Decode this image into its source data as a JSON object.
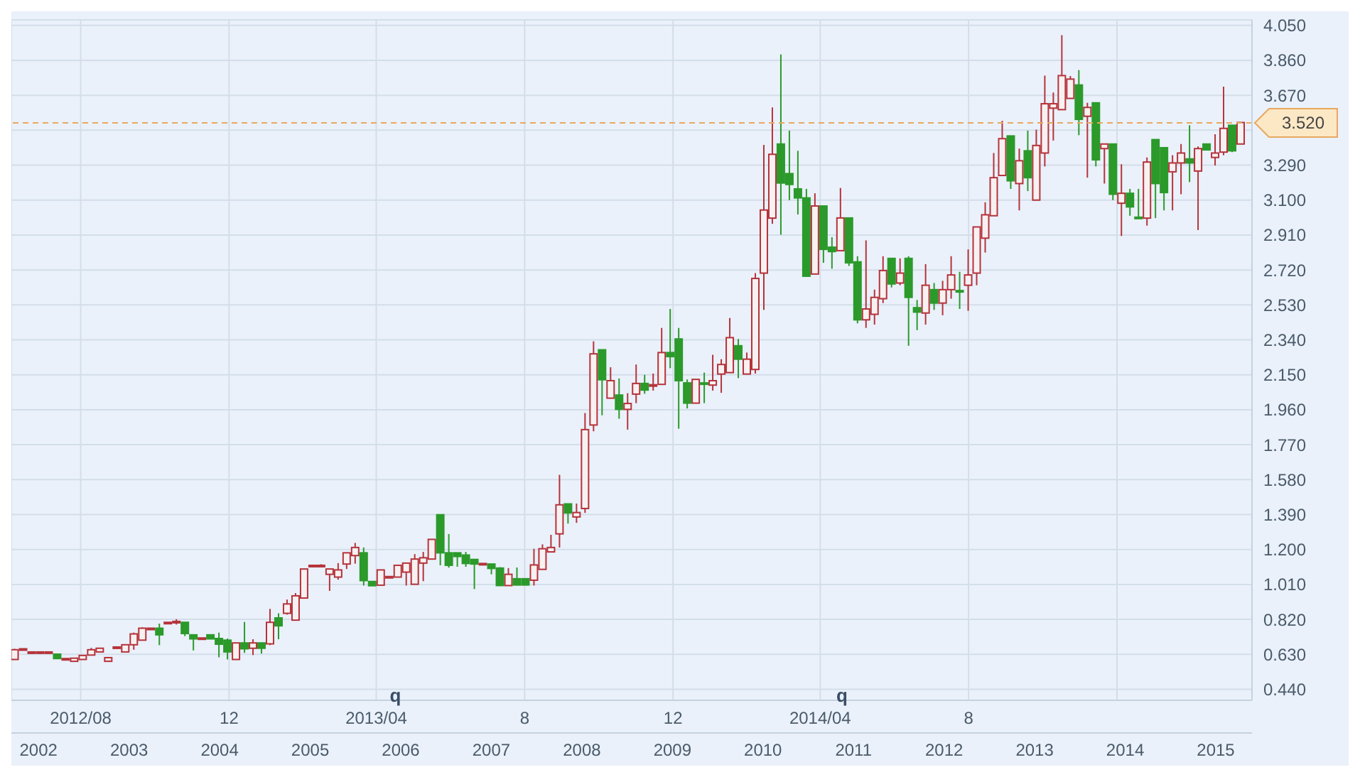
{
  "chart_data": {
    "type": "candlestick",
    "x": [
      "2012-06-08",
      "2012-06-15",
      "2012-06-22",
      "2012-06-29",
      "2012-07-06",
      "2012-07-13",
      "2012-07-20",
      "2012-07-27",
      "2012-08-03",
      "2012-08-10",
      "2012-08-17",
      "2012-08-24",
      "2012-08-31",
      "2012-09-07",
      "2012-09-14",
      "2012-09-21",
      "2012-09-28",
      "2012-10-05",
      "2012-10-12",
      "2012-10-19",
      "2012-10-26",
      "2012-11-02",
      "2012-11-09",
      "2012-11-16",
      "2012-11-23",
      "2012-11-30",
      "2012-12-07",
      "2012-12-14",
      "2012-12-21",
      "2012-12-28",
      "2013-01-04",
      "2013-01-11",
      "2013-01-18",
      "2013-01-25",
      "2013-02-01",
      "2013-02-08",
      "2013-02-15",
      "2013-02-22",
      "2013-03-01",
      "2013-03-08",
      "2013-03-15",
      "2013-03-22",
      "2013-03-29",
      "2013-04-05",
      "2013-04-12",
      "2013-04-19",
      "2013-04-26",
      "2013-05-03",
      "2013-05-10",
      "2013-05-17",
      "2013-05-24",
      "2013-05-31",
      "2013-06-07",
      "2013-06-14",
      "2013-06-21",
      "2013-06-28",
      "2013-07-05",
      "2013-07-12",
      "2013-07-19",
      "2013-07-26",
      "2013-08-02",
      "2013-08-09",
      "2013-08-16",
      "2013-08-23",
      "2013-08-30",
      "2013-09-06",
      "2013-09-13",
      "2013-09-20",
      "2013-09-27",
      "2013-10-04",
      "2013-10-11",
      "2013-10-18",
      "2013-10-25",
      "2013-11-01",
      "2013-11-08",
      "2013-11-15",
      "2013-11-22",
      "2013-11-29",
      "2013-12-06",
      "2013-12-13",
      "2013-12-20",
      "2013-12-27",
      "2014-01-03",
      "2014-01-10",
      "2014-01-17",
      "2014-01-24",
      "2014-01-31",
      "2014-02-07",
      "2014-02-14",
      "2014-02-21",
      "2014-02-28",
      "2014-03-07",
      "2014-03-14",
      "2014-03-21",
      "2014-03-28",
      "2014-04-04",
      "2014-04-11",
      "2014-04-18",
      "2014-04-25",
      "2014-05-02",
      "2014-05-09",
      "2014-05-16",
      "2014-05-23",
      "2014-05-30",
      "2014-06-06",
      "2014-06-13",
      "2014-06-20",
      "2014-06-27",
      "2014-07-04",
      "2014-07-11",
      "2014-07-18",
      "2014-07-25",
      "2014-08-01",
      "2014-08-08",
      "2014-08-15",
      "2014-08-22",
      "2014-08-29",
      "2014-09-05",
      "2014-09-12",
      "2014-09-19",
      "2014-09-26",
      "2014-10-03",
      "2014-10-10",
      "2014-10-17",
      "2014-10-24",
      "2014-10-31",
      "2014-11-07",
      "2014-11-14",
      "2014-11-21",
      "2014-11-28",
      "2014-12-05",
      "2014-12-12",
      "2014-12-19",
      "2014-12-26",
      "2015-01-02",
      "2015-01-09",
      "2015-01-16",
      "2015-01-23",
      "2015-01-30",
      "2015-02-06",
      "2015-02-13",
      "2015-02-20",
      "2015-02-27",
      "2015-03-06",
      "2015-03-13"
    ],
    "ohlc": [
      [
        0.602,
        0.66,
        0.6,
        0.655
      ],
      [
        0.66,
        0.66,
        0.66,
        0.66
      ],
      [
        0.643,
        0.643,
        0.643,
        0.643
      ],
      [
        0.643,
        0.643,
        0.643,
        0.643
      ],
      [
        0.643,
        0.643,
        0.643,
        0.643
      ],
      [
        0.631,
        0.631,
        0.607,
        0.607
      ],
      [
        0.607,
        0.607,
        0.607,
        0.607
      ],
      [
        0.592,
        0.609,
        0.592,
        0.609
      ],
      [
        0.602,
        0.624,
        0.602,
        0.624
      ],
      [
        0.626,
        0.665,
        0.626,
        0.655
      ],
      [
        0.643,
        0.663,
        0.643,
        0.663
      ],
      [
        0.592,
        0.612,
        0.592,
        0.612
      ],
      [
        0.67,
        0.67,
        0.67,
        0.67
      ],
      [
        0.643,
        0.682,
        0.643,
        0.682
      ],
      [
        0.682,
        0.748,
        0.655,
        0.741
      ],
      [
        0.707,
        0.777,
        0.707,
        0.772
      ],
      [
        0.772,
        0.772,
        0.772,
        0.772
      ],
      [
        0.772,
        0.797,
        0.68,
        0.736
      ],
      [
        0.804,
        0.804,
        0.804,
        0.804
      ],
      [
        0.809,
        0.821,
        0.792,
        0.809
      ],
      [
        0.804,
        0.804,
        0.729,
        0.743
      ],
      [
        0.736,
        0.736,
        0.651,
        0.714
      ],
      [
        0.719,
        0.719,
        0.719,
        0.719
      ],
      [
        0.736,
        0.736,
        0.714,
        0.714
      ],
      [
        0.716,
        0.748,
        0.614,
        0.685
      ],
      [
        0.707,
        0.716,
        0.602,
        0.643
      ],
      [
        0.602,
        0.692,
        0.602,
        0.692
      ],
      [
        0.692,
        0.806,
        0.638,
        0.66
      ],
      [
        0.663,
        0.712,
        0.626,
        0.692
      ],
      [
        0.692,
        0.692,
        0.634,
        0.663
      ],
      [
        0.687,
        0.877,
        0.68,
        0.804
      ],
      [
        0.828,
        0.853,
        0.712,
        0.785
      ],
      [
        0.853,
        0.928,
        0.846,
        0.904
      ],
      [
        0.816,
        0.963,
        0.816,
        0.948
      ],
      [
        0.936,
        1.094,
        0.936,
        1.094
      ],
      [
        1.114,
        1.114,
        1.114,
        1.114
      ],
      [
        1.114,
        1.12,
        1.108,
        1.114
      ],
      [
        1.065,
        1.094,
        0.975,
        1.094
      ],
      [
        1.05,
        1.126,
        1.036,
        1.089
      ],
      [
        1.121,
        1.182,
        1.094,
        1.182
      ],
      [
        1.167,
        1.236,
        1.123,
        1.211
      ],
      [
        1.182,
        1.211,
        1.004,
        1.031
      ],
      [
        1.026,
        1.026,
        1.003,
        1.003
      ],
      [
        1.006,
        1.089,
        1.006,
        1.089
      ],
      [
        1.053,
        1.053,
        1.053,
        1.053
      ],
      [
        1.05,
        1.114,
        1.05,
        1.114
      ],
      [
        1.077,
        1.126,
        1.004,
        1.126
      ],
      [
        1.011,
        1.175,
        1.011,
        1.148
      ],
      [
        1.126,
        1.187,
        1.028,
        1.155
      ],
      [
        1.148,
        1.255,
        1.148,
        1.255
      ],
      [
        1.389,
        1.389,
        1.114,
        1.182
      ],
      [
        1.182,
        1.284,
        1.101,
        1.114
      ],
      [
        1.182,
        1.182,
        1.106,
        1.162
      ],
      [
        1.17,
        1.187,
        1.106,
        1.124
      ],
      [
        1.146,
        1.146,
        0.985,
        1.121
      ],
      [
        1.124,
        1.124,
        1.124,
        1.124
      ],
      [
        1.121,
        1.121,
        1.065,
        1.097
      ],
      [
        1.099,
        1.104,
        1.004,
        1.004
      ],
      [
        1.004,
        1.099,
        1.004,
        1.065
      ],
      [
        1.041,
        1.102,
        1.007,
        1.007
      ],
      [
        1.041,
        1.041,
        1.007,
        1.007
      ],
      [
        1.033,
        1.204,
        1.004,
        1.116
      ],
      [
        1.092,
        1.228,
        1.092,
        1.204
      ],
      [
        1.187,
        1.28,
        1.187,
        1.211
      ],
      [
        1.285,
        1.606,
        1.211,
        1.443
      ],
      [
        1.448,
        1.448,
        1.341,
        1.399
      ],
      [
        1.377,
        1.45,
        1.345,
        1.401
      ],
      [
        1.423,
        1.942,
        1.399,
        1.852
      ],
      [
        1.877,
        2.332,
        1.843,
        2.264
      ],
      [
        2.286,
        2.286,
        1.93,
        2.123
      ],
      [
        2.023,
        2.191,
        2.023,
        2.118
      ],
      [
        2.04,
        2.13,
        1.911,
        1.962
      ],
      [
        1.962,
        2.05,
        1.852,
        1.994
      ],
      [
        2.045,
        2.206,
        1.996,
        2.103
      ],
      [
        2.103,
        2.15,
        2.047,
        2.067
      ],
      [
        2.096,
        2.157,
        2.064,
        2.096
      ],
      [
        2.098,
        2.405,
        2.098,
        2.271
      ],
      [
        2.271,
        2.508,
        2.186,
        2.249
      ],
      [
        2.345,
        2.405,
        1.857,
        2.118
      ],
      [
        2.106,
        2.125,
        1.967,
        1.996
      ],
      [
        1.996,
        2.125,
        1.996,
        2.125
      ],
      [
        2.106,
        2.162,
        1.996,
        2.106
      ],
      [
        2.094,
        2.259,
        2.064,
        2.118
      ],
      [
        2.154,
        2.235,
        2.052,
        2.206
      ],
      [
        2.162,
        2.459,
        2.162,
        2.352
      ],
      [
        2.308,
        2.345,
        2.132,
        2.235
      ],
      [
        2.154,
        2.271,
        2.154,
        2.235
      ],
      [
        2.179,
        2.703,
        2.157,
        2.674
      ],
      [
        2.703,
        3.4,
        2.503,
        3.046
      ],
      [
        3.002,
        3.604,
        2.971,
        3.349
      ],
      [
        3.405,
        3.892,
        2.912,
        3.193
      ],
      [
        3.244,
        3.478,
        3.1,
        3.185
      ],
      [
        3.161,
        3.368,
        3.022,
        3.112
      ],
      [
        3.112,
        3.161,
        2.686,
        2.686
      ],
      [
        2.698,
        3.137,
        2.698,
        3.068
      ],
      [
        3.068,
        3.068,
        2.759,
        2.832
      ],
      [
        2.844,
        2.898,
        2.727,
        2.82
      ],
      [
        2.825,
        3.166,
        2.825,
        3.003
      ],
      [
        3.003,
        3.003,
        2.742,
        2.759
      ],
      [
        2.764,
        2.795,
        2.43,
        2.449
      ],
      [
        2.449,
        2.881,
        2.405,
        2.508
      ],
      [
        2.479,
        2.613,
        2.423,
        2.571
      ],
      [
        2.564,
        2.795,
        2.54,
        2.717
      ],
      [
        2.783,
        2.783,
        2.625,
        2.644
      ],
      [
        2.649,
        2.783,
        2.637,
        2.703
      ],
      [
        2.783,
        2.795,
        2.308,
        2.571
      ],
      [
        2.515,
        2.557,
        2.393,
        2.491
      ],
      [
        2.486,
        2.752,
        2.423,
        2.637
      ],
      [
        2.613,
        2.649,
        2.503,
        2.54
      ],
      [
        2.54,
        2.661,
        2.474,
        2.613
      ],
      [
        2.613,
        2.795,
        2.564,
        2.693
      ],
      [
        2.608,
        2.71,
        2.508,
        2.608
      ],
      [
        2.637,
        2.832,
        2.498,
        2.693
      ],
      [
        2.703,
        2.954,
        2.637,
        2.954
      ],
      [
        2.893,
        3.088,
        2.815,
        3.02
      ],
      [
        3.015,
        3.356,
        3.015,
        3.222
      ],
      [
        3.234,
        3.531,
        3.234,
        3.434
      ],
      [
        3.449,
        3.449,
        3.161,
        3.205
      ],
      [
        3.19,
        3.38,
        3.044,
        3.314
      ],
      [
        3.368,
        3.478,
        3.149,
        3.222
      ],
      [
        3.1,
        3.483,
        3.1,
        3.397
      ],
      [
        3.356,
        3.777,
        3.283,
        3.624
      ],
      [
        3.6,
        3.685,
        3.424,
        3.624
      ],
      [
        3.592,
        3.997,
        3.592,
        3.777
      ],
      [
        3.653,
        3.775,
        3.653,
        3.758
      ],
      [
        3.726,
        3.807,
        3.453,
        3.539
      ],
      [
        3.556,
        3.629,
        3.222,
        3.604
      ],
      [
        3.629,
        3.629,
        3.283,
        3.319
      ],
      [
        3.38,
        3.405,
        3.19,
        3.405
      ],
      [
        3.405,
        3.405,
        3.1,
        3.132
      ],
      [
        3.083,
        3.295,
        2.905,
        3.137
      ],
      [
        3.137,
        3.161,
        3.015,
        3.063
      ],
      [
        3.007,
        3.161,
        3.007,
        3.007
      ],
      [
        3.002,
        3.332,
        2.961,
        3.307
      ],
      [
        3.429,
        3.429,
        3.002,
        3.19
      ],
      [
        3.385,
        3.385,
        3.044,
        3.141
      ],
      [
        3.254,
        3.344,
        3.044,
        3.302
      ],
      [
        3.302,
        3.405,
        3.132,
        3.356
      ],
      [
        3.324,
        3.507,
        3.198,
        3.302
      ],
      [
        3.258,
        3.392,
        2.937,
        3.38
      ],
      [
        3.405,
        3.405,
        3.373,
        3.373
      ],
      [
        3.332,
        3.458,
        3.288,
        3.356
      ],
      [
        3.361,
        3.717,
        3.344,
        3.49
      ],
      [
        3.507,
        3.507,
        3.361,
        3.368
      ],
      [
        3.405,
        3.522,
        3.405,
        3.522
      ]
    ],
    "colors": [
      "#b5333b",
      "#b5333b",
      "#b5333b",
      "#b5333b",
      "#b5333b",
      "#2b9a2b",
      "#b5333b",
      "#b5333b",
      "#b5333b",
      "#b5333b",
      "#b5333b",
      "#b5333b",
      "#b5333b",
      "#b5333b",
      "#b5333b",
      "#b5333b",
      "#b5333b",
      "#2b9a2b",
      "#b5333b",
      "#b5333b",
      "#2b9a2b",
      "#2b9a2b",
      "#b5333b",
      "#2b9a2b",
      "#2b9a2b",
      "#2b9a2b",
      "#b5333b",
      "#2b9a2b",
      "#b5333b",
      "#2b9a2b",
      "#b5333b",
      "#2b9a2b",
      "#b5333b",
      "#b5333b",
      "#b5333b",
      "#b5333b",
      "#b5333b",
      "#b5333b",
      "#b5333b",
      "#b5333b",
      "#b5333b",
      "#2b9a2b",
      "#2b9a2b",
      "#b5333b",
      "#b5333b",
      "#b5333b",
      "#b5333b",
      "#b5333b",
      "#b5333b",
      "#b5333b",
      "#2b9a2b",
      "#2b9a2b",
      "#2b9a2b",
      "#2b9a2b",
      "#2b9a2b",
      "#b5333b",
      "#2b9a2b",
      "#2b9a2b",
      "#b5333b",
      "#2b9a2b",
      "#2b9a2b",
      "#b5333b",
      "#b5333b",
      "#b5333b",
      "#b5333b",
      "#2b9a2b",
      "#b5333b",
      "#b5333b",
      "#b5333b",
      "#2b9a2b",
      "#b5333b",
      "#2b9a2b",
      "#b5333b",
      "#b5333b",
      "#2b9a2b",
      "#b5333b",
      "#b5333b",
      "#2b9a2b",
      "#2b9a2b",
      "#2b9a2b",
      "#b5333b",
      "#2b9a2b",
      "#b5333b",
      "#b5333b",
      "#b5333b",
      "#2b9a2b",
      "#b5333b",
      "#b5333b",
      "#b5333b",
      "#b5333b",
      "#2b9a2b",
      "#2b9a2b",
      "#2b9a2b",
      "#2b9a2b",
      "#b5333b",
      "#2b9a2b",
      "#2b9a2b",
      "#b5333b",
      "#2b9a2b",
      "#2b9a2b",
      "#b5333b",
      "#b5333b",
      "#b5333b",
      "#2b9a2b",
      "#b5333b",
      "#2b9a2b",
      "#2b9a2b",
      "#b5333b",
      "#2b9a2b",
      "#b5333b",
      "#b5333b",
      "#2b9a2b",
      "#b5333b",
      "#b5333b",
      "#b5333b",
      "#b5333b",
      "#b5333b",
      "#2b9a2b",
      "#b5333b",
      "#2b9a2b",
      "#b5333b",
      "#b5333b",
      "#b5333b",
      "#b5333b",
      "#b5333b",
      "#2b9a2b",
      "#b5333b",
      "#2b9a2b",
      "#b5333b",
      "#2b9a2b",
      "#b5333b",
      "#2b9a2b",
      "#2b9a2b",
      "#b5333b",
      "#2b9a2b",
      "#2b9a2b",
      "#b5333b",
      "#b5333b",
      "#2b9a2b",
      "#b5333b",
      "#2b9a2b",
      "#b5333b",
      "#b5333b",
      "#2b9a2b",
      "#b5333b"
    ],
    "xlim": [
      "2012-06-05",
      "2015-03-22"
    ],
    "xticks": [
      {
        "value": "2012-08-01",
        "label": "2012/08"
      },
      {
        "value": "2012-12-01",
        "label": "12"
      },
      {
        "value": "2013-04-01",
        "label": "2013/04"
      },
      {
        "value": "2013-08-01",
        "label": "8"
      },
      {
        "value": "2013-12-01",
        "label": "12"
      },
      {
        "value": "2014-04-01",
        "label": "2014/04"
      },
      {
        "value": "2014-08-01",
        "label": "8"
      },
      {
        "value": "2014-12-01",
        "label": null
      }
    ],
    "ylim": [
      0.38,
      4.08
    ],
    "yticks": [
      {
        "value": 0.44,
        "label": "0.440"
      },
      {
        "value": 0.63,
        "label": "0.630"
      },
      {
        "value": 0.82,
        "label": "0.820"
      },
      {
        "value": 1.01,
        "label": "1.010"
      },
      {
        "value": 1.2,
        "label": "1.200"
      },
      {
        "value": 1.39,
        "label": "1.390"
      },
      {
        "value": 1.58,
        "label": "1.580"
      },
      {
        "value": 1.77,
        "label": "1.770"
      },
      {
        "value": 1.96,
        "label": "1.960"
      },
      {
        "value": 2.15,
        "label": "2.150"
      },
      {
        "value": 2.34,
        "label": "2.340"
      },
      {
        "value": 2.53,
        "label": "2.530"
      },
      {
        "value": 2.72,
        "label": "2.720"
      },
      {
        "value": 2.91,
        "label": "2.910"
      },
      {
        "value": 3.1,
        "label": "3.100"
      },
      {
        "value": 3.29,
        "label": "3.290"
      },
      {
        "value": 3.48,
        "label": null
      },
      {
        "value": 3.67,
        "label": "3.670"
      },
      {
        "value": 3.86,
        "label": "3.860"
      },
      {
        "value": 4.05,
        "label": "4.050"
      }
    ],
    "x2lim": [
      2001.7,
      2015.4
    ],
    "x2ticks": [
      2002,
      2003,
      2004,
      2005,
      2006,
      2007,
      2008,
      2009,
      2010,
      2011,
      2012,
      2013,
      2014,
      2015
    ],
    "ref_lines": [
      {
        "axis": "y",
        "value": 3.52,
        "label": "3.520",
        "color": "#e8a860",
        "line_style": "dashed"
      }
    ],
    "annotations": [
      "q",
      "q"
    ],
    "grid": true
  }
}
